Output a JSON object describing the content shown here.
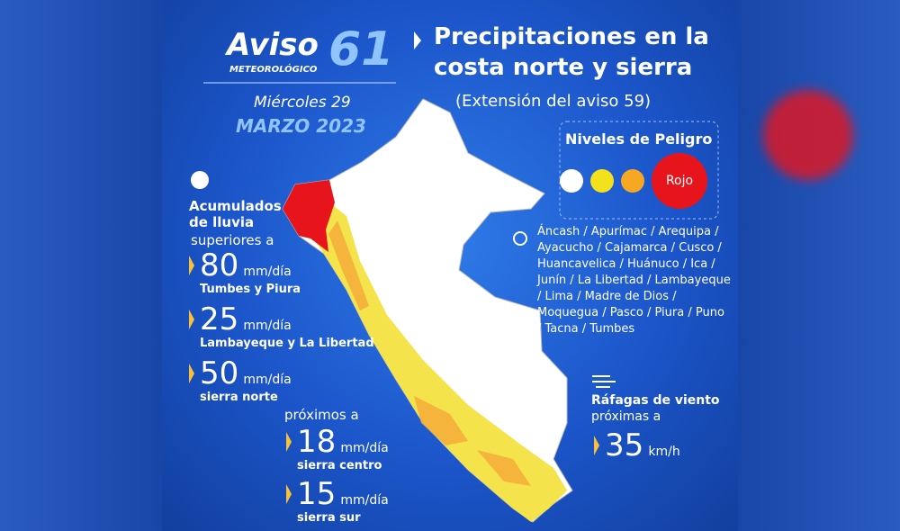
{
  "header": {
    "brand": "Aviso",
    "number": "61",
    "subtitle": "METEOROLÓGICO",
    "day": "Miércoles 29",
    "date": "MARZO 2023"
  },
  "title": {
    "lines": [
      "Precipitaciones en la",
      "costa norte y sierra"
    ],
    "note": "(Extensión del aviso 59)"
  },
  "levels": {
    "title": "Niveles de Peligro",
    "active": "Rojo"
  },
  "regions": {
    "lines": [
      "Áncash / Apurímac / Arequipa /",
      "Ayacucho / Cajamarca / Cusco /",
      "Huancavelica / Huánuco / Ica /",
      "Junín / La Libertad / Lambayeque",
      "/ Lima / Madre de Dios /",
      "Moquegua / Pasco / Piura / Puno",
      "/ Tacna / Tumbes"
    ]
  },
  "rain": {
    "heading": [
      "Acumulados",
      "de lluvia"
    ],
    "intro": "superiores a",
    "items": [
      {
        "value": "80",
        "unit": "mm/día",
        "place": "Tumbes y Piura"
      },
      {
        "value": "25",
        "unit": "mm/día",
        "place": "Lambayeque y La Libertad"
      },
      {
        "value": "50",
        "unit": "mm/día",
        "place": "sierra norte"
      }
    ],
    "intro2": "próximos a",
    "items2": [
      {
        "value": "18",
        "unit": "mm/día",
        "place": "sierra centro"
      },
      {
        "value": "15",
        "unit": "mm/día",
        "place": "sierra sur"
      }
    ]
  },
  "wind": {
    "heading": "Ráfagas de viento",
    "intro": "próximas a",
    "value": "35",
    "unit": "km/h"
  }
}
